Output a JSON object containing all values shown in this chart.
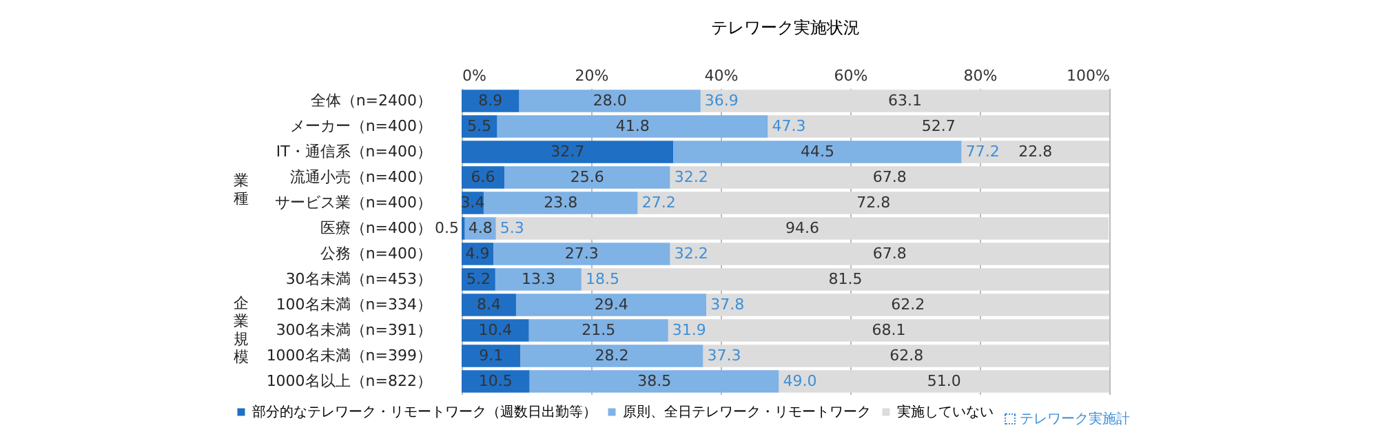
{
  "chart_data": {
    "type": "bar",
    "orientation": "horizontal",
    "stacked": true,
    "title": "テレワーク実施状況",
    "categories": [
      "全体（n=2400）",
      "メーカー（n=400）",
      "IT・通信系（n=400）",
      "流通小売（n=400）",
      "サービス業（n=400）",
      "医療（n=400）",
      "公務（n=400）",
      "30名未満（n=453）",
      "100名未満（n=334）",
      "300名未満（n=391）",
      "1000名未満（n=399）",
      "1000名以上（n=822）"
    ],
    "series": [
      {
        "name": "部分的なテレワーク・リモートワーク（週数日出勤等）",
        "color": "#1f6fc5",
        "values": [
          8.9,
          5.5,
          32.7,
          6.6,
          3.4,
          0.5,
          4.9,
          5.2,
          8.4,
          10.4,
          9.1,
          10.5
        ],
        "value_labels": [
          "8.9",
          "5.5",
          "32.7",
          "6.6",
          "3.4",
          "0.5",
          "4.9",
          "5.2",
          "8.4",
          "10.4",
          "9.1",
          "10.5"
        ]
      },
      {
        "name": "原則、全日テレワーク・リモートワーク",
        "color": "#7fb2e5",
        "values": [
          28.0,
          41.8,
          44.5,
          25.6,
          23.8,
          4.8,
          27.3,
          13.3,
          29.4,
          21.5,
          28.2,
          38.5
        ],
        "value_labels": [
          "28.0",
          "41.8",
          "44.5",
          "25.6",
          "23.8",
          "4.8",
          "27.3",
          "13.3",
          "29.4",
          "21.5",
          "28.2",
          "38.5"
        ]
      },
      {
        "name": "実施していない",
        "color": "#dcdcdc",
        "values": [
          63.1,
          52.7,
          22.8,
          67.8,
          72.8,
          94.6,
          67.8,
          81.5,
          62.2,
          68.1,
          62.8,
          51.0
        ],
        "value_labels": [
          "63.1",
          "52.7",
          "22.8",
          "67.8",
          "72.8",
          "94.6",
          "67.8",
          "81.5",
          "62.2",
          "68.1",
          "62.8",
          "51.0"
        ]
      }
    ],
    "xlim": [
      0,
      100
    ],
    "xticks": [
      {
        "value": 0,
        "label": "0%"
      },
      {
        "value": 20,
        "label": "20%"
      },
      {
        "value": 40,
        "label": "40%"
      },
      {
        "value": 60,
        "label": "60%"
      },
      {
        "value": 80,
        "label": "80%"
      },
      {
        "value": 100,
        "label": "100%"
      }
    ],
    "grid": "x",
    "legend": "bottom",
    "annotations": [
      "業種",
      "企業規模",
      "テレワーク実施計",
      {
        "text": "36.9",
        "x": 36.9,
        "y": "全体（n=2400）"
      },
      {
        "text": "47.3",
        "x": 47.3,
        "y": "メーカー（n=400）"
      },
      {
        "text": "77.2",
        "x": 77.2,
        "y": "IT・通信系（n=400）"
      },
      {
        "text": "32.2",
        "x": 32.2,
        "y": "流通小売（n=400）"
      },
      {
        "text": "27.2",
        "x": 27.2,
        "y": "サービス業（n=400）"
      },
      {
        "text": "5.3",
        "x": 5.3,
        "y": "医療（n=400）"
      },
      {
        "text": "32.2",
        "x": 32.2,
        "y": "公務（n=400）"
      },
      {
        "text": "18.5",
        "x": 18.5,
        "y": "30名未満（n=453）"
      },
      {
        "text": "37.8",
        "x": 37.8,
        "y": "100名未満（n=334）"
      },
      {
        "text": "31.9",
        "x": 31.9,
        "y": "300名未満（n=391）"
      },
      {
        "text": "37.3",
        "x": 37.3,
        "y": "1000名未満（n=399）"
      },
      {
        "text": "49.0",
        "x": 49.0,
        "y": "1000名以上（n=822）"
      }
    ]
  }
}
